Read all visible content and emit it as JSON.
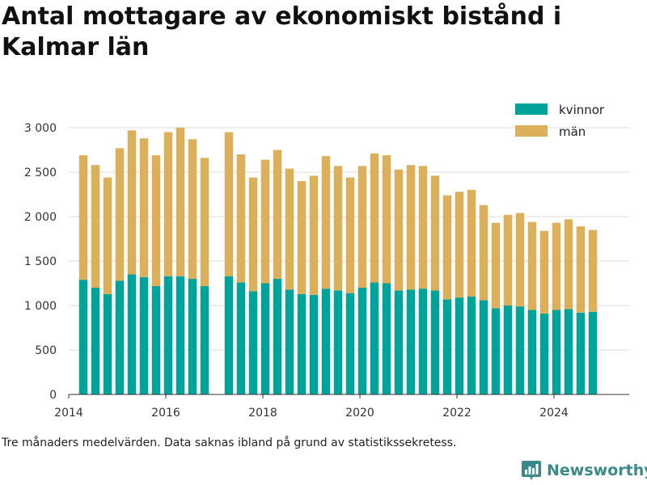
{
  "title": "Antal mottagare av ekonomiskt bistånd i Kalmar län",
  "caption": "Tre månaders medelvärden. Data saknas ibland på grund av statistikssekretess.",
  "brand": {
    "name": "Newsworthy",
    "logo_icon": "bar-chart-logo-icon"
  },
  "colors": {
    "kvinnor": "#00a39a",
    "man": "#dcaf5a",
    "grid": "#dddddd",
    "axis": "#333333",
    "brand": "#3a8a8a"
  },
  "chart_data": {
    "type": "bar",
    "stacked": true,
    "title": "Antal mottagare av ekonomiskt bistånd i Kalmar län",
    "xlabel": "",
    "ylabel": "",
    "ylim": [
      0,
      3000
    ],
    "xlim": [
      2014.0,
      2025.55
    ],
    "x_ticks": [
      2014,
      2016,
      2018,
      2020,
      2022,
      2024
    ],
    "y_ticks": [
      0,
      500,
      1000,
      1500,
      2000,
      2500,
      3000
    ],
    "y_tick_labels": [
      "0",
      "500",
      "1 000",
      "1 500",
      "2 000",
      "2 500",
      "3 000"
    ],
    "grid": true,
    "legend_position": "top-right",
    "series": [
      {
        "name": "kvinnor",
        "color": "#00a39a",
        "values": [
          [
            2014.3,
            1290
          ],
          [
            2014.55,
            1200
          ],
          [
            2014.8,
            1130
          ],
          [
            2015.05,
            1280
          ],
          [
            2015.3,
            1350
          ],
          [
            2015.55,
            1320
          ],
          [
            2015.8,
            1220
          ],
          [
            2016.05,
            1330
          ],
          [
            2016.3,
            1330
          ],
          [
            2016.55,
            1300
          ],
          [
            2016.8,
            1220
          ],
          [
            2017.3,
            1330
          ],
          [
            2017.55,
            1260
          ],
          [
            2017.8,
            1160
          ],
          [
            2018.05,
            1250
          ],
          [
            2018.3,
            1300
          ],
          [
            2018.55,
            1180
          ],
          [
            2018.8,
            1130
          ],
          [
            2019.05,
            1120
          ],
          [
            2019.3,
            1190
          ],
          [
            2019.55,
            1170
          ],
          [
            2019.8,
            1140
          ],
          [
            2020.05,
            1200
          ],
          [
            2020.3,
            1260
          ],
          [
            2020.55,
            1250
          ],
          [
            2020.8,
            1170
          ],
          [
            2021.05,
            1180
          ],
          [
            2021.3,
            1190
          ],
          [
            2021.55,
            1170
          ],
          [
            2021.8,
            1070
          ],
          [
            2022.05,
            1090
          ],
          [
            2022.3,
            1100
          ],
          [
            2022.55,
            1060
          ],
          [
            2022.8,
            970
          ],
          [
            2023.05,
            1000
          ],
          [
            2023.3,
            990
          ],
          [
            2023.55,
            950
          ],
          [
            2023.8,
            910
          ],
          [
            2024.05,
            950
          ],
          [
            2024.3,
            960
          ],
          [
            2024.55,
            920
          ],
          [
            2024.8,
            930
          ]
        ]
      },
      {
        "name": "män",
        "color": "#dcaf5a",
        "values": [
          [
            2014.3,
            1400
          ],
          [
            2014.55,
            1380
          ],
          [
            2014.8,
            1310
          ],
          [
            2015.05,
            1490
          ],
          [
            2015.3,
            1620
          ],
          [
            2015.55,
            1560
          ],
          [
            2015.8,
            1470
          ],
          [
            2016.05,
            1620
          ],
          [
            2016.3,
            1670
          ],
          [
            2016.55,
            1570
          ],
          [
            2016.8,
            1440
          ],
          [
            2017.3,
            1620
          ],
          [
            2017.55,
            1440
          ],
          [
            2017.8,
            1280
          ],
          [
            2018.05,
            1390
          ],
          [
            2018.3,
            1450
          ],
          [
            2018.55,
            1360
          ],
          [
            2018.8,
            1270
          ],
          [
            2019.05,
            1340
          ],
          [
            2019.3,
            1490
          ],
          [
            2019.55,
            1400
          ],
          [
            2019.8,
            1300
          ],
          [
            2020.05,
            1370
          ],
          [
            2020.3,
            1450
          ],
          [
            2020.55,
            1440
          ],
          [
            2020.8,
            1360
          ],
          [
            2021.05,
            1400
          ],
          [
            2021.3,
            1380
          ],
          [
            2021.55,
            1290
          ],
          [
            2021.8,
            1170
          ],
          [
            2022.05,
            1190
          ],
          [
            2022.3,
            1200
          ],
          [
            2022.55,
            1070
          ],
          [
            2022.8,
            960
          ],
          [
            2023.05,
            1020
          ],
          [
            2023.3,
            1050
          ],
          [
            2023.55,
            990
          ],
          [
            2023.8,
            930
          ],
          [
            2024.05,
            980
          ],
          [
            2024.3,
            1010
          ],
          [
            2024.55,
            970
          ],
          [
            2024.8,
            920
          ]
        ]
      }
    ]
  }
}
